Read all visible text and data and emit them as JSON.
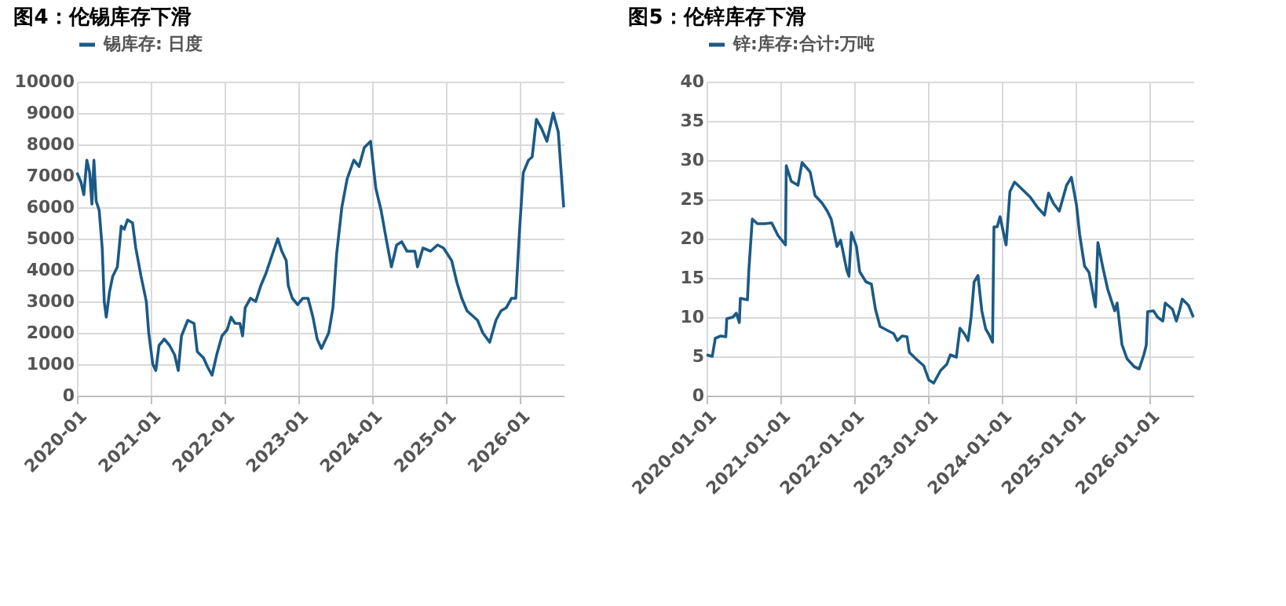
{
  "chart_data": [
    {
      "type": "line",
      "title": "图4：伦锡库存下滑",
      "legend": "top",
      "grid": true,
      "line_style": "solid",
      "x": [
        "2020-01-01",
        "2020-01-21",
        "2020-02-04",
        "2020-02-19",
        "2020-03-04",
        "2020-03-15",
        "2020-03-25",
        "2020-04-05",
        "2020-04-20",
        "2020-05-05",
        "2020-05-15",
        "2020-05-25",
        "2020-06-10",
        "2020-06-26",
        "2020-07-19",
        "2020-08-07",
        "2020-08-22",
        "2020-09-07",
        "2020-10-02",
        "2020-10-18",
        "2020-11-13",
        "2020-12-09",
        "2020-12-21",
        "2021-01-10",
        "2021-01-25",
        "2021-02-10",
        "2021-03-08",
        "2021-04-03",
        "2021-04-28",
        "2021-05-16",
        "2021-06-01",
        "2021-07-02",
        "2021-08-02",
        "2021-08-18",
        "2021-09-18",
        "2021-10-09",
        "2021-10-30",
        "2021-11-22",
        "2021-12-18",
        "2022-01-13",
        "2022-02-01",
        "2022-02-21",
        "2022-03-17",
        "2022-03-30",
        "2022-04-12",
        "2022-05-08",
        "2022-06-03",
        "2022-06-28",
        "2022-07-24",
        "2022-08-19",
        "2022-09-20",
        "2022-10-10",
        "2022-11-01",
        "2022-11-11",
        "2022-12-01",
        "2022-12-27",
        "2023-01-22",
        "2023-02-17",
        "2023-03-13",
        "2023-04-03",
        "2023-04-24",
        "2023-05-30",
        "2023-06-20",
        "2023-07-08",
        "2023-08-03",
        "2023-08-29",
        "2023-10-01",
        "2023-10-27",
        "2023-11-22",
        "2023-12-23",
        "2024-01-18",
        "2024-02-13",
        "2024-03-09",
        "2024-04-04",
        "2024-04-30",
        "2024-05-25",
        "2024-06-20",
        "2024-07-29",
        "2024-08-11",
        "2024-09-07",
        "2024-10-15",
        "2024-11-18",
        "2024-12-18",
        "2025-01-27",
        "2025-02-22",
        "2025-03-18",
        "2025-04-13",
        "2025-06-04",
        "2025-06-30",
        "2025-08-03",
        "2025-09-03",
        "2025-09-28",
        "2025-10-24",
        "2025-11-19",
        "2025-12-10",
        "2025-12-28",
        "2026-01-16",
        "2026-02-11",
        "2026-03-01",
        "2026-03-22",
        "2026-04-17",
        "2026-05-13",
        "2026-06-13",
        "2026-07-08",
        "2026-08-04"
      ],
      "series": [
        {
          "name": "锡库存: 日度",
          "color": "#1b5a86",
          "values": [
            7100,
            6800,
            6400,
            7500,
            7100,
            6100,
            7500,
            6200,
            5900,
            4700,
            3000,
            2500,
            3300,
            3800,
            4100,
            5400,
            5300,
            5600,
            5500,
            4700,
            3800,
            3000,
            2000,
            1000,
            800,
            1600,
            1800,
            1600,
            1300,
            800,
            1900,
            2400,
            2300,
            1400,
            1200,
            900,
            650,
            1300,
            1900,
            2100,
            2500,
            2300,
            2300,
            1900,
            2800,
            3100,
            3000,
            3500,
            3900,
            4400,
            5000,
            4600,
            4300,
            3500,
            3100,
            2900,
            3100,
            3100,
            2500,
            1800,
            1500,
            2000,
            2800,
            4500,
            6000,
            6900,
            7500,
            7300,
            7900,
            8100,
            6600,
            5900,
            5000,
            4100,
            4800,
            4900,
            4600,
            4600,
            4100,
            4700,
            4600,
            4800,
            4700,
            4300,
            3600,
            3100,
            2700,
            2400,
            2000,
            1700,
            2400,
            2700,
            2800,
            3100,
            3100,
            5200,
            7100,
            7500,
            7600,
            8800,
            8500,
            8100,
            9000,
            8400,
            6000
          ]
        }
      ],
      "xlim": [
        "2020-01-01",
        "2026-08-04"
      ],
      "xticks": [
        {
          "value": "2020-01-01",
          "label": "2020-01"
        },
        {
          "value": "2021-01-01",
          "label": "2021-01"
        },
        {
          "value": "2022-01-01",
          "label": "2022-01"
        },
        {
          "value": "2023-01-01",
          "label": "2023-01"
        },
        {
          "value": "2024-01-01",
          "label": "2024-01"
        },
        {
          "value": "2025-01-01",
          "label": "2025-01"
        },
        {
          "value": "2026-01-01",
          "label": "2026-01"
        }
      ],
      "ylim": [
        0,
        10000
      ],
      "yticks": [
        0,
        1000,
        2000,
        3000,
        4000,
        5000,
        6000,
        7000,
        8000,
        9000,
        10000
      ]
    },
    {
      "type": "line",
      "title": "图5：伦锌库存下滑",
      "legend": "top",
      "grid": true,
      "line_style": "solid",
      "x": [
        "2020-01-01",
        "2020-01-29",
        "2020-02-13",
        "2020-03-11",
        "2020-04-05",
        "2020-04-10",
        "2020-05-10",
        "2020-05-27",
        "2020-06-11",
        "2020-06-16",
        "2020-07-21",
        "2020-07-28",
        "2020-08-14",
        "2020-09-08",
        "2020-10-13",
        "2020-11-18",
        "2020-12-19",
        "2021-01-25",
        "2021-01-29",
        "2021-02-23",
        "2021-03-28",
        "2021-04-17",
        "2021-05-27",
        "2021-06-20",
        "2021-07-26",
        "2021-08-20",
        "2021-09-08",
        "2021-10-07",
        "2021-10-25",
        "2021-11-24",
        "2021-12-05",
        "2021-12-17",
        "2022-01-11",
        "2022-01-27",
        "2022-02-27",
        "2022-03-26",
        "2022-04-15",
        "2022-05-08",
        "2022-06-14",
        "2022-07-14",
        "2022-08-01",
        "2022-08-25",
        "2022-09-18",
        "2022-09-30",
        "2022-11-05",
        "2022-12-10",
        "2023-01-04",
        "2023-01-28",
        "2023-03-03",
        "2023-04-03",
        "2023-04-20",
        "2023-05-20",
        "2023-06-07",
        "2023-07-01",
        "2023-07-17",
        "2023-08-01",
        "2023-08-16",
        "2023-09-04",
        "2023-09-23",
        "2023-10-12",
        "2023-10-28",
        "2023-11-15",
        "2023-11-22",
        "2023-12-08",
        "2023-12-22",
        "2024-01-21",
        "2024-02-09",
        "2024-03-03",
        "2024-04-01",
        "2024-05-19",
        "2024-06-24",
        "2024-07-29",
        "2024-08-18",
        "2024-09-11",
        "2024-10-10",
        "2024-11-15",
        "2024-12-09",
        "2025-01-03",
        "2025-01-19",
        "2025-02-12",
        "2025-03-06",
        "2025-04-07",
        "2025-04-19",
        "2025-05-12",
        "2025-06-06",
        "2025-07-11",
        "2025-07-23",
        "2025-08-16",
        "2025-09-10",
        "2025-10-15",
        "2025-11-09",
        "2025-12-02",
        "2025-12-14",
        "2025-12-21",
        "2026-01-19",
        "2026-02-08",
        "2026-03-06",
        "2026-03-18",
        "2026-04-23",
        "2026-05-12",
        "2026-05-29",
        "2026-06-10",
        "2026-07-11",
        "2026-08-04"
      ],
      "series": [
        {
          "name": "锌:库存:合计:万吨",
          "color": "#1b5a86",
          "values": [
            5.2,
            5.0,
            7.3,
            7.6,
            7.5,
            9.8,
            10.0,
            10.5,
            9.3,
            12.4,
            12.2,
            16,
            22.5,
            21.9,
            21.9,
            22.0,
            20.4,
            19.2,
            29.3,
            27.3,
            26.8,
            29.7,
            28.5,
            25.5,
            24.5,
            23.5,
            22.5,
            19.0,
            19.8,
            16.0,
            15.2,
            20.8,
            19.0,
            15.8,
            14.5,
            14.2,
            11.0,
            8.8,
            8.3,
            7.9,
            7.0,
            7.6,
            7.5,
            5.5,
            4.6,
            3.8,
            2.0,
            1.6,
            3.2,
            4.0,
            5.2,
            4.9,
            8.6,
            7.8,
            7.0,
            10.0,
            14.5,
            15.3,
            10.8,
            8.5,
            7.8,
            6.8,
            21.5,
            21.5,
            22.8,
            19.2,
            26.0,
            27.2,
            26.5,
            25.3,
            24.0,
            23.0,
            25.8,
            24.5,
            23.5,
            26.8,
            27.8,
            24.3,
            20.5,
            16.5,
            15.7,
            11.3,
            19.5,
            16.5,
            13.6,
            10.8,
            11.8,
            6.5,
            4.7,
            3.7,
            3.4,
            5.2,
            6.4,
            10.7,
            10.8,
            10.0,
            9.5,
            11.8,
            11.0,
            9.5,
            11.0,
            12.3,
            11.5,
            10.0
          ]
        }
      ],
      "xlim": [
        "2020-01-01",
        "2026-08-04"
      ],
      "xticks": [
        "2020-01-01",
        "2021-01-01",
        "2022-01-01",
        "2023-01-01",
        "2024-01-01",
        "2025-01-01",
        "2026-01-01"
      ],
      "ylim": [
        0,
        40
      ],
      "yticks": [
        0,
        5,
        10,
        15,
        20,
        25,
        30,
        35,
        40
      ]
    }
  ]
}
